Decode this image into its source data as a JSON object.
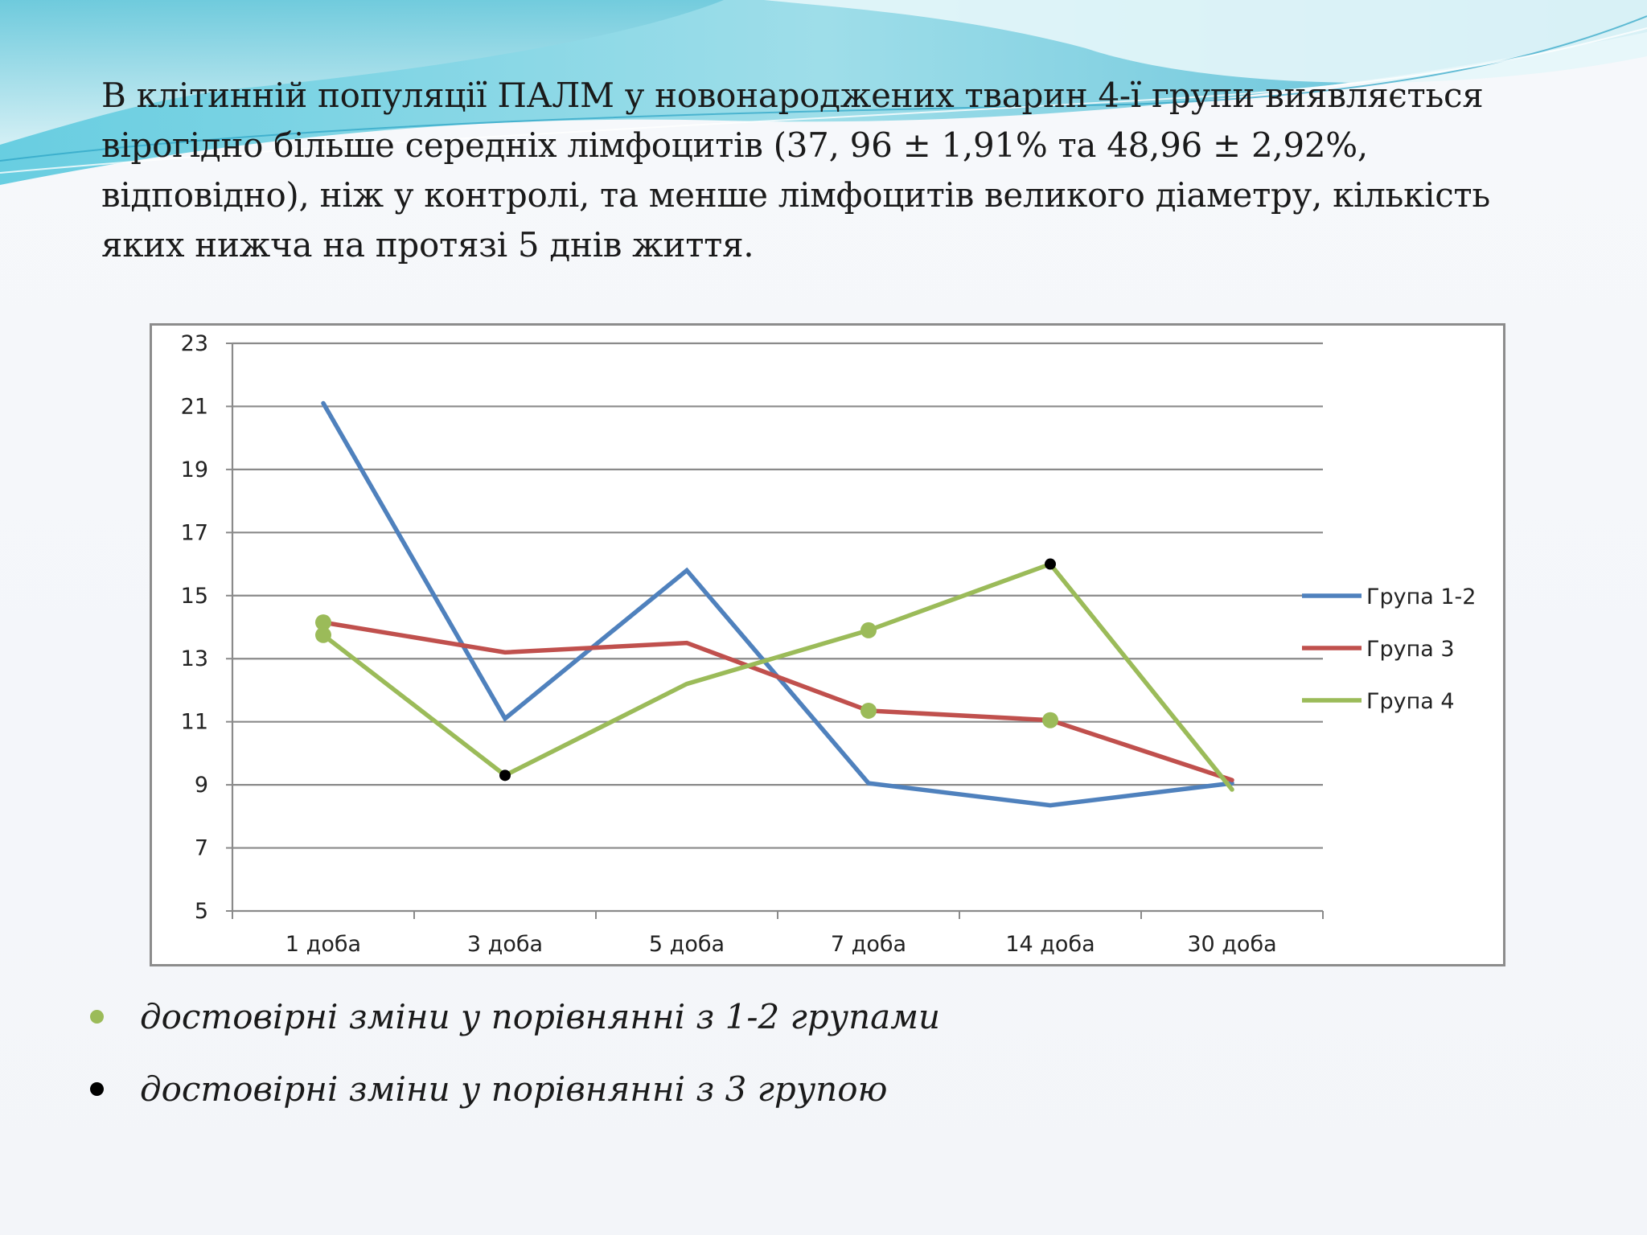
{
  "slide": {
    "text": "В клітинній популяції ПАЛМ у новонароджених тварин 4-ї групи виявляється вірогідно більше середніх лімфоцитів (37, 96 ± 1,91% та 48,96 ± 2,92%, відповідно), ніж у контролі, та менше лімфоцитів великого діаметру, кількість яких нижча на протязі 5 днів життя."
  },
  "chart_data": {
    "type": "line",
    "categories": [
      "1 доба",
      "3 доба",
      "5 доба",
      "7 доба",
      "14 доба",
      "30 доба"
    ],
    "ylim": [
      5,
      23
    ],
    "yticks": [
      5,
      7,
      9,
      11,
      13,
      15,
      17,
      19,
      21,
      23
    ],
    "grid": true,
    "legend_position": "right",
    "series": [
      {
        "name": "Група 1-2",
        "color": "#4f81bd",
        "values": [
          21.1,
          11.1,
          15.8,
          9.05,
          8.35,
          9.05
        ]
      },
      {
        "name": "Група 3",
        "color": "#c0504d",
        "values": [
          14.15,
          13.2,
          13.5,
          11.35,
          11.05,
          9.15
        ]
      },
      {
        "name": "Група 4",
        "color": "#9bbb59",
        "values": [
          13.75,
          9.3,
          12.2,
          13.9,
          16.0,
          8.85
        ]
      }
    ],
    "markers": [
      {
        "series": "Група 3",
        "index": 0,
        "type": "green"
      },
      {
        "series": "Група 3",
        "index": 3,
        "type": "green"
      },
      {
        "series": "Група 3",
        "index": 4,
        "type": "green"
      },
      {
        "series": "Група 4",
        "index": 0,
        "type": "green"
      },
      {
        "series": "Група 4",
        "index": 1,
        "type": "black"
      },
      {
        "series": "Група 4",
        "index": 3,
        "type": "green"
      },
      {
        "series": "Група 4",
        "index": 4,
        "type": "black"
      }
    ],
    "marker_colors": {
      "green": "#9bbb59",
      "black": "#000000"
    }
  },
  "notes": [
    {
      "color": "#9bbb59",
      "text": "достовірні зміни у порівнянні з 1-2 групами"
    },
    {
      "color": "#000000",
      "text": "достовірні зміни у порівнянні з 3 групою"
    }
  ]
}
